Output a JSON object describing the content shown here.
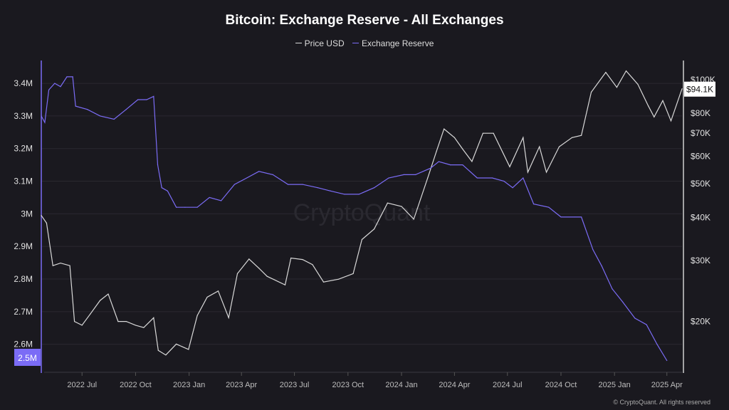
{
  "chart_data": {
    "type": "line",
    "title": "Bitcoin: Exchange Reserve - All Exchanges",
    "legend_position": "top-center",
    "grid": true,
    "x_ticks": [
      "2022 Jul",
      "2022 Oct",
      "2023 Jan",
      "2023 Apr",
      "2023 Jul",
      "2023 Oct",
      "2024 Jan",
      "2024 Apr",
      "2024 Jul",
      "2024 Oct",
      "2025 Jan",
      "2025 Apr"
    ],
    "x_tick_dates": [
      "2022-07-01",
      "2022-10-01",
      "2023-01-01",
      "2023-04-01",
      "2023-07-01",
      "2023-10-01",
      "2024-01-01",
      "2024-04-01",
      "2024-07-01",
      "2024-10-01",
      "2025-01-01",
      "2025-04-01"
    ],
    "xlim": [
      "2022-04-22",
      "2025-04-27"
    ],
    "left_axis": {
      "ticks": [
        2.6,
        2.7,
        2.8,
        2.9,
        3.0,
        3.1,
        3.2,
        3.3,
        3.4
      ],
      "tick_labels": [
        "2.6M",
        "2.7M",
        "2.8M",
        "2.9M",
        "3M",
        "3.1M",
        "3.2M",
        "3.3M",
        "3.4M"
      ],
      "range": [
        2.525,
        3.47
      ],
      "unit": "M BTC",
      "current_label": "2.5M",
      "color": "#7b6cf6"
    },
    "right_axis": {
      "scale": "log",
      "ticks": [
        20,
        30,
        40,
        50,
        60,
        70,
        80,
        100
      ],
      "tick_labels": [
        "$20K",
        "$30K",
        "$40K",
        "$50K",
        "$60K",
        "$70K",
        "$80K",
        "$100K"
      ],
      "range": [
        14.6,
        113.6
      ],
      "unit": "K USD",
      "current_label": "$94.1K"
    },
    "series": [
      {
        "name": "Price USD",
        "axis": "right",
        "color": "#d9d9d9",
        "x": [
          "2022-04-22",
          "2022-05-01",
          "2022-05-12",
          "2022-05-25",
          "2022-06-10",
          "2022-06-18",
          "2022-07-01",
          "2022-07-15",
          "2022-08-01",
          "2022-08-15",
          "2022-09-01",
          "2022-09-15",
          "2022-10-01",
          "2022-10-15",
          "2022-11-01",
          "2022-11-09",
          "2022-11-22",
          "2022-12-10",
          "2022-12-31",
          "2023-01-15",
          "2023-02-01",
          "2023-02-20",
          "2023-03-10",
          "2023-03-25",
          "2023-04-14",
          "2023-05-01",
          "2023-05-15",
          "2023-06-15",
          "2023-06-25",
          "2023-07-15",
          "2023-08-01",
          "2023-08-20",
          "2023-09-15",
          "2023-10-10",
          "2023-10-25",
          "2023-11-15",
          "2023-12-08",
          "2024-01-01",
          "2024-01-22",
          "2024-02-15",
          "2024-03-01",
          "2024-03-14",
          "2024-04-01",
          "2024-04-15",
          "2024-05-01",
          "2024-05-20",
          "2024-06-07",
          "2024-07-05",
          "2024-07-28",
          "2024-08-05",
          "2024-08-25",
          "2024-09-06",
          "2024-09-28",
          "2024-10-20",
          "2024-11-05",
          "2024-11-22",
          "2024-12-17",
          "2025-01-05",
          "2025-01-21",
          "2025-02-10",
          "2025-02-28",
          "2025-03-10",
          "2025-03-25",
          "2025-04-08",
          "2025-04-27"
        ],
        "values": [
          40.5,
          38.5,
          29,
          29.5,
          29,
          20,
          19.5,
          21,
          23,
          24,
          20,
          20,
          19.5,
          19.2,
          20.5,
          16.5,
          16,
          17.2,
          16.6,
          20.8,
          23.5,
          24.5,
          20.5,
          27.5,
          30.3,
          28.5,
          27,
          25.5,
          30.5,
          30.2,
          29.2,
          26,
          26.5,
          27.5,
          34.5,
          37,
          44,
          43,
          39.5,
          52,
          62,
          72,
          68,
          63,
          58,
          70,
          70,
          56,
          68,
          54,
          64,
          54,
          64,
          68,
          69,
          92,
          105,
          95,
          106,
          97,
          84,
          78,
          87,
          76,
          94.1
        ]
      },
      {
        "name": "Exchange Reserve",
        "axis": "left",
        "color": "#7b6cf6",
        "x": [
          "2022-04-22",
          "2022-04-28",
          "2022-05-05",
          "2022-05-15",
          "2022-05-25",
          "2022-06-05",
          "2022-06-15",
          "2022-06-20",
          "2022-07-10",
          "2022-08-01",
          "2022-08-25",
          "2022-09-15",
          "2022-10-05",
          "2022-10-20",
          "2022-11-01",
          "2022-11-08",
          "2022-11-15",
          "2022-11-25",
          "2022-12-10",
          "2022-12-25",
          "2023-01-15",
          "2023-02-05",
          "2023-02-25",
          "2023-03-20",
          "2023-04-10",
          "2023-05-01",
          "2023-05-25",
          "2023-06-20",
          "2023-07-15",
          "2023-08-10",
          "2023-09-01",
          "2023-09-25",
          "2023-10-20",
          "2023-11-15",
          "2023-12-10",
          "2024-01-05",
          "2024-01-25",
          "2024-02-20",
          "2024-03-05",
          "2024-03-25",
          "2024-04-15",
          "2024-05-10",
          "2024-06-05",
          "2024-06-25",
          "2024-07-10",
          "2024-07-28",
          "2024-08-15",
          "2024-09-10",
          "2024-10-01",
          "2024-10-25",
          "2024-11-05",
          "2024-11-25",
          "2024-12-10",
          "2024-12-28",
          "2025-01-15",
          "2025-02-05",
          "2025-02-25",
          "2025-03-15",
          "2025-04-01"
        ],
        "values": [
          3.3,
          3.28,
          3.38,
          3.4,
          3.39,
          3.42,
          3.42,
          3.33,
          3.32,
          3.3,
          3.29,
          3.32,
          3.35,
          3.35,
          3.36,
          3.15,
          3.08,
          3.07,
          3.02,
          3.02,
          3.02,
          3.05,
          3.04,
          3.09,
          3.11,
          3.13,
          3.12,
          3.09,
          3.09,
          3.08,
          3.07,
          3.06,
          3.06,
          3.08,
          3.11,
          3.12,
          3.12,
          3.14,
          3.16,
          3.15,
          3.15,
          3.11,
          3.11,
          3.1,
          3.08,
          3.11,
          3.03,
          3.02,
          2.99,
          2.99,
          2.99,
          2.89,
          2.84,
          2.77,
          2.73,
          2.68,
          2.66,
          2.6,
          2.55
        ]
      }
    ]
  },
  "watermark": "CryptoQuant",
  "footer": "© CryptoQuant. All rights reserved"
}
